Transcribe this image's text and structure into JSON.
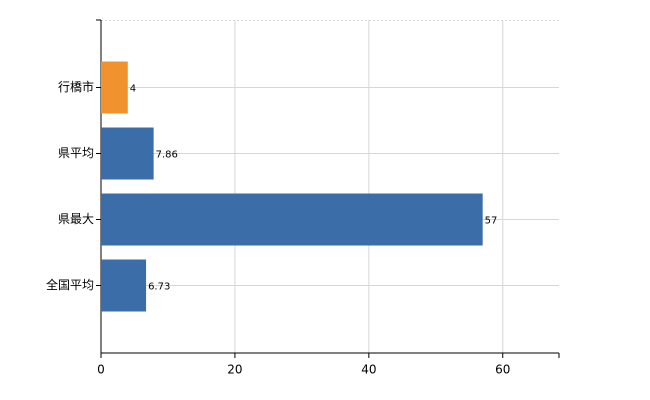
{
  "chart_data": {
    "type": "hbar",
    "categories": [
      "行橋市",
      "県平均",
      "県最大",
      "全国平均"
    ],
    "values": [
      4,
      7.86,
      57,
      6.73
    ],
    "colors": [
      "#f0922e",
      "#3b6ea8",
      "#3b6ea8",
      "#3b6ea8"
    ],
    "xlim": [
      0,
      68.4
    ],
    "xticks": [
      0,
      20,
      40,
      60
    ],
    "grid": true
  }
}
